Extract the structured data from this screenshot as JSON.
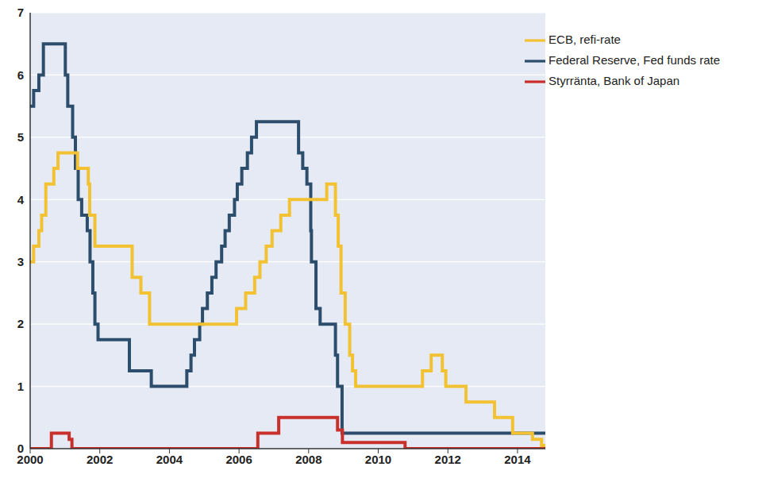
{
  "chart_data": {
    "type": "line",
    "legend": "upper right",
    "grid": true,
    "xlim": [
      2000,
      2014.8
    ],
    "xticks": [
      2000,
      2002,
      2004,
      2006,
      2008,
      2010,
      2012,
      2014
    ],
    "ylim": [
      0,
      7
    ],
    "yticks": [
      0,
      1,
      2,
      3,
      4,
      5,
      6,
      7
    ],
    "series": [
      {
        "name": "Federal Reserve, Fed funds rate",
        "color": "#2c4d6c",
        "line_style": "step",
        "x": [
          2000,
          2000.1,
          2000.25,
          2000.38,
          2001.01,
          2001.08,
          2001.22,
          2001.3,
          2001.38,
          2001.48,
          2001.64,
          2001.72,
          2001.8,
          2001.86,
          2001.95,
          2002.85,
          2003.48,
          2004.5,
          2004.62,
          2004.72,
          2004.87,
          2004.95,
          2005.09,
          2005.22,
          2005.34,
          2005.5,
          2005.6,
          2005.72,
          2005.87,
          2005.95,
          2006.08,
          2006.24,
          2006.36,
          2006.5,
          2007.71,
          2007.83,
          2007.95,
          2008.06,
          2008.08,
          2008.21,
          2008.33,
          2008.77,
          2008.83,
          2008.96,
          2014.8
        ],
        "values": [
          5.5,
          5.75,
          6.0,
          6.5,
          6.0,
          5.5,
          5.0,
          4.5,
          4.0,
          3.75,
          3.5,
          3.0,
          2.5,
          2.0,
          1.75,
          1.25,
          1.0,
          1.25,
          1.5,
          1.75,
          2.0,
          2.25,
          2.5,
          2.75,
          3.0,
          3.25,
          3.5,
          3.75,
          4.0,
          4.25,
          4.5,
          4.75,
          5.0,
          5.25,
          4.75,
          4.5,
          4.25,
          3.5,
          3.0,
          2.25,
          2.0,
          1.5,
          1.0,
          0.25,
          0.25
        ]
      },
      {
        "name": "ECB, refi-rate",
        "color": "#f2c232",
        "line_style": "step",
        "x": [
          2000,
          2000.1,
          2000.25,
          2000.33,
          2000.45,
          2000.68,
          2000.8,
          2001.36,
          2001.67,
          2001.71,
          2001.86,
          2002.93,
          2003.18,
          2003.43,
          2005.93,
          2006.19,
          2006.45,
          2006.6,
          2006.78,
          2006.95,
          2007.2,
          2007.45,
          2008.52,
          2008.77,
          2008.85,
          2008.93,
          2009.05,
          2009.18,
          2009.26,
          2009.35,
          2011.27,
          2011.52,
          2011.84,
          2011.94,
          2012.52,
          2013.34,
          2013.86,
          2014.43,
          2014.69,
          2014.8
        ],
        "values": [
          3.0,
          3.25,
          3.5,
          3.75,
          4.25,
          4.5,
          4.75,
          4.5,
          4.25,
          3.75,
          3.25,
          2.75,
          2.5,
          2.0,
          2.25,
          2.5,
          2.75,
          3.0,
          3.25,
          3.5,
          3.75,
          4.0,
          4.25,
          3.75,
          3.25,
          2.5,
          2.0,
          1.5,
          1.25,
          1.0,
          1.25,
          1.5,
          1.25,
          1.0,
          0.75,
          0.5,
          0.25,
          0.15,
          0.05,
          0.05
        ]
      },
      {
        "name": "Styrränta, Bank of Japan",
        "color": "#c9302c",
        "line_style": "step",
        "x": [
          2000,
          2000.61,
          2001.12,
          2001.2,
          2006.54,
          2007.14,
          2008.83,
          2008.97,
          2010.77,
          2014.8
        ],
        "values": [
          0,
          0.25,
          0.15,
          0,
          0.25,
          0.5,
          0.3,
          0.1,
          0,
          0
        ]
      }
    ]
  }
}
